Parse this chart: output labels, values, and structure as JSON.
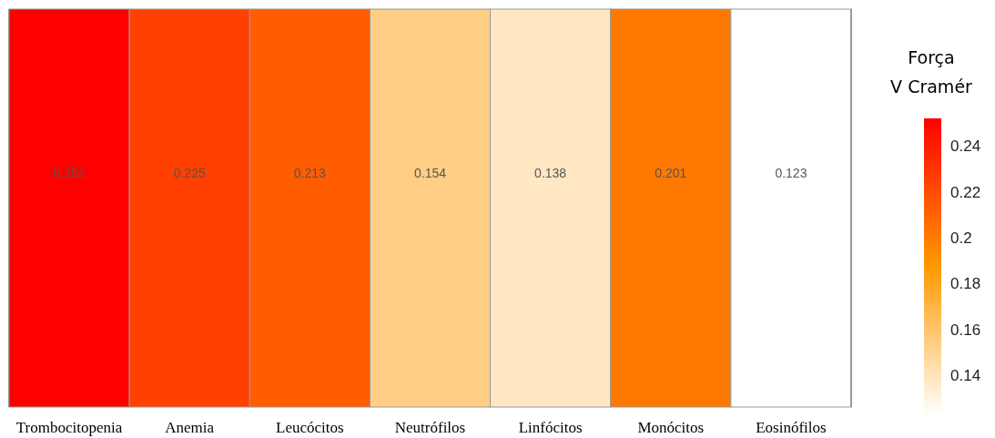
{
  "chart_data": {
    "type": "heatmap",
    "clabel": "Força\nV Cramér",
    "categories": [
      "Trombocitopenia",
      "Anemia",
      "Leucócitos",
      "Neutrófilos",
      "Linfócitos",
      "Monócitos",
      "Eosinófilos"
    ],
    "y_categories": [
      null
    ],
    "cells": [
      [
        0.252,
        0.225,
        0.213,
        0.154,
        0.138,
        0.201,
        0.123
      ]
    ],
    "clim": [
      0.123,
      0.252
    ],
    "cticks": [
      {
        "value": 0.14,
        "label": "0.14"
      },
      {
        "value": 0.16,
        "label": "0.16"
      },
      {
        "value": 0.18,
        "label": "0.18"
      },
      {
        "value": 0.2,
        "label": "0.2"
      },
      {
        "value": 0.22,
        "label": "0.22"
      },
      {
        "value": 0.24,
        "label": "0.24"
      }
    ],
    "data_labels": true
  }
}
